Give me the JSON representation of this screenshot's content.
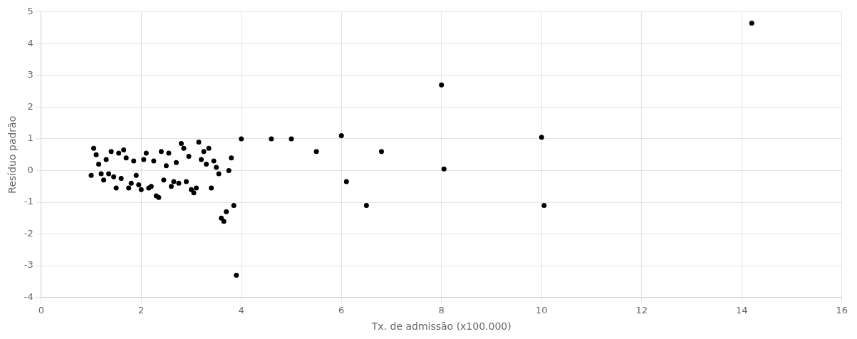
{
  "chart_data": {
    "type": "scatter",
    "x": [
      1.0,
      1.05,
      1.1,
      1.15,
      1.2,
      1.25,
      1.3,
      1.35,
      1.4,
      1.45,
      1.5,
      1.55,
      1.6,
      1.65,
      1.7,
      1.75,
      1.8,
      1.85,
      1.9,
      1.95,
      2.0,
      2.05,
      2.1,
      2.15,
      2.2,
      2.25,
      2.3,
      2.35,
      2.4,
      2.45,
      2.5,
      2.55,
      2.6,
      2.65,
      2.7,
      2.75,
      2.8,
      2.85,
      2.9,
      2.95,
      3.0,
      3.05,
      3.1,
      3.15,
      3.2,
      3.25,
      3.3,
      3.35,
      3.4,
      3.45,
      3.5,
      3.55,
      3.6,
      3.65,
      3.7,
      3.75,
      3.8,
      3.85,
      3.9,
      4.0,
      4.6,
      5.0,
      5.5,
      6.0,
      6.1,
      6.5,
      6.8,
      8.0,
      8.05,
      10.0,
      10.05,
      14.2
    ],
    "values": [
      -0.15,
      0.7,
      0.5,
      0.2,
      -0.1,
      -0.3,
      0.35,
      -0.1,
      0.6,
      -0.2,
      -0.55,
      0.55,
      -0.25,
      0.65,
      0.4,
      -0.55,
      -0.4,
      0.3,
      -0.15,
      -0.45,
      -0.6,
      0.35,
      0.55,
      -0.55,
      -0.5,
      0.3,
      -0.8,
      -0.85,
      0.6,
      -0.3,
      0.15,
      0.55,
      -0.5,
      -0.35,
      0.25,
      -0.4,
      0.85,
      0.7,
      -0.35,
      0.45,
      -0.6,
      -0.7,
      -0.55,
      0.9,
      0.35,
      0.6,
      0.2,
      0.7,
      -0.55,
      0.3,
      0.1,
      -0.1,
      -1.5,
      -1.6,
      -1.3,
      0.0,
      0.4,
      -1.1,
      -3.3,
      1.0,
      1.0,
      1.0,
      0.6,
      1.1,
      -0.35,
      -1.1,
      0.6,
      2.7,
      0.05,
      1.05,
      -1.1,
      4.65
    ],
    "x_label": "Tx. de admissão (x100.000)",
    "y_label": "Resíduo padrão",
    "xlim": [
      0,
      16
    ],
    "ylim": [
      -4,
      5
    ],
    "xticks": [
      0,
      2,
      4,
      6,
      8,
      10,
      12,
      14,
      16
    ],
    "yticks": [
      -4,
      -3,
      -2,
      -1,
      0,
      1,
      2,
      3,
      4,
      5
    ],
    "color": "#000000",
    "marker": "circle",
    "grid": true
  }
}
